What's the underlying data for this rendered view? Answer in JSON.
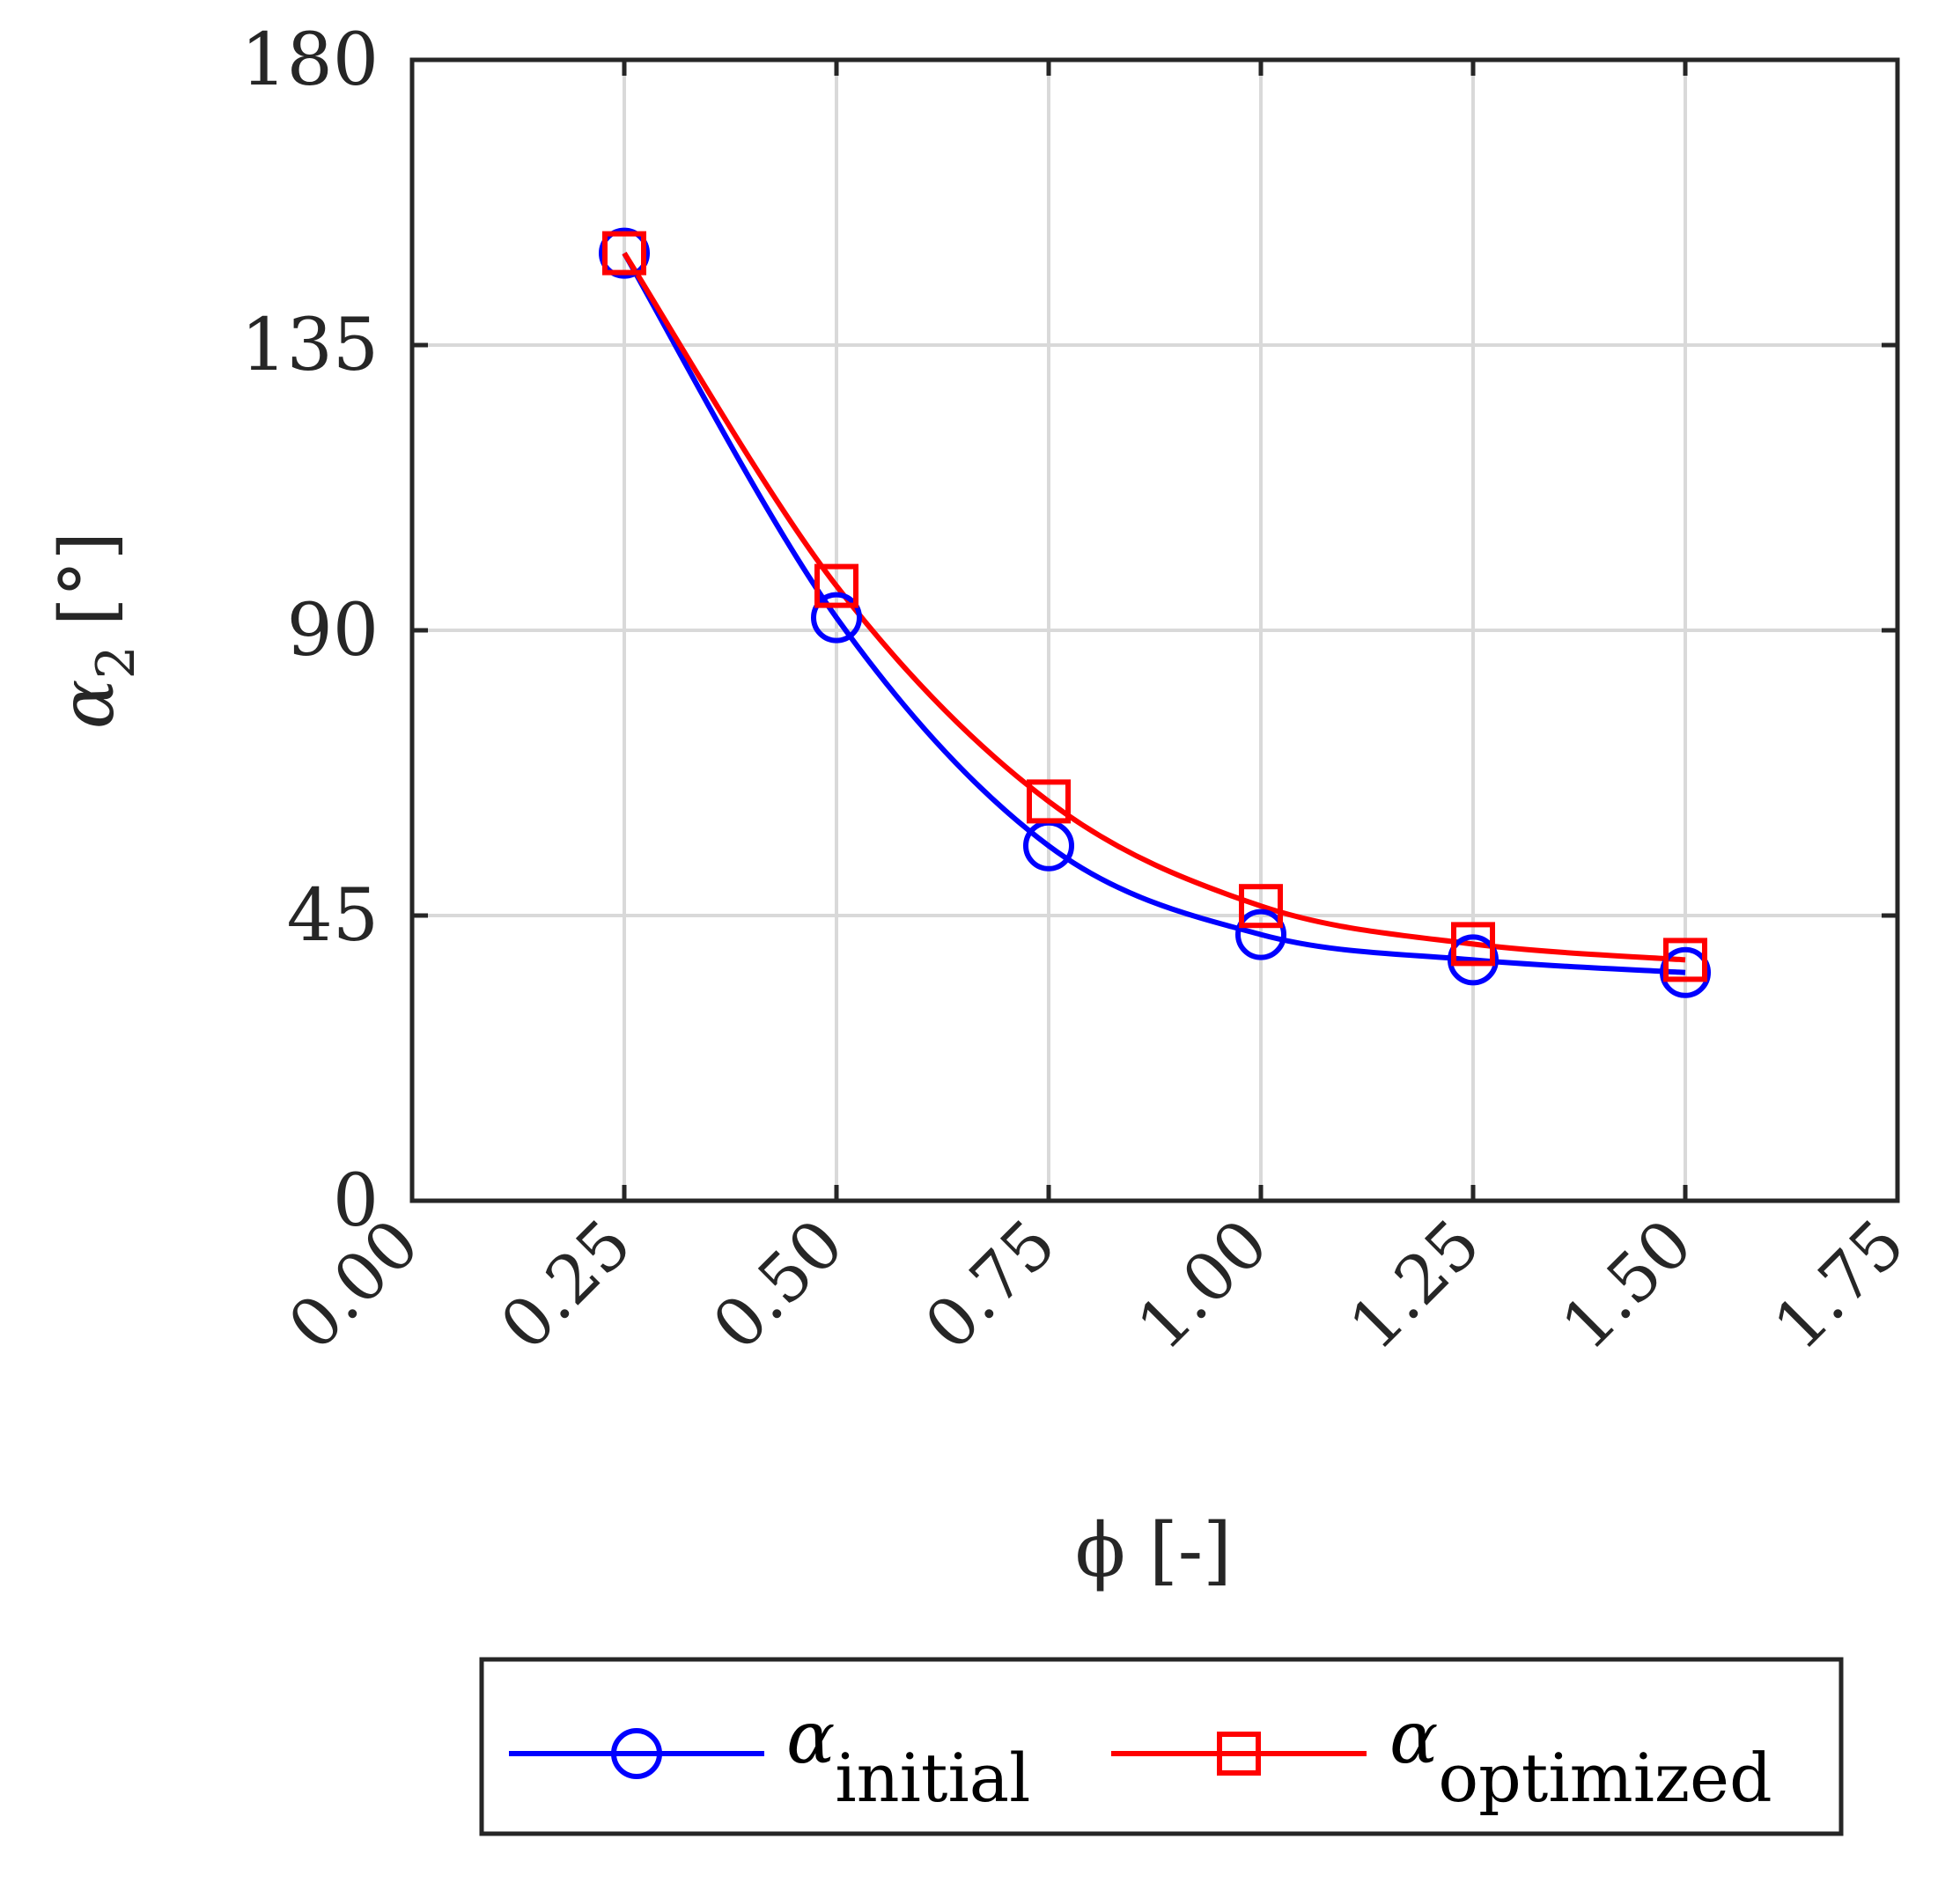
{
  "chart_data": {
    "type": "line",
    "x": [
      0.25,
      0.5,
      0.75,
      1.0,
      1.25,
      1.5
    ],
    "series": [
      {
        "name": "α initial",
        "symbol": "α",
        "subscript": "initial",
        "color": "#0000ff",
        "marker": "circle",
        "values": [
          149.5,
          92,
          56,
          42,
          38,
          36
        ]
      },
      {
        "name": "α optimized",
        "symbol": "α",
        "subscript": "optimized",
        "color": "#ff0000",
        "marker": "square",
        "values": [
          149.5,
          97,
          63,
          46.5,
          40.5,
          38
        ]
      }
    ],
    "x_ticks": [
      "0.00",
      "0.25",
      "0.50",
      "0.75",
      "1.00",
      "1.25",
      "1.50",
      "1.75"
    ],
    "x_tick_values": [
      0,
      0.25,
      0.5,
      0.75,
      1.0,
      1.25,
      1.5,
      1.75
    ],
    "y_ticks": [
      "0",
      "45",
      "90",
      "135",
      "180"
    ],
    "y_tick_values": [
      0,
      45,
      90,
      135,
      180
    ],
    "xlim": [
      0,
      1.75
    ],
    "ylim": [
      0,
      180
    ],
    "xlabel": "ϕ [-]",
    "ylabel": {
      "symbol": "α",
      "subscript": "2",
      "unit": "[°]"
    },
    "grid": true,
    "legend_placement": "bottom-outside",
    "axis_color": "#262626",
    "grid_color": "#d9d9d9"
  }
}
